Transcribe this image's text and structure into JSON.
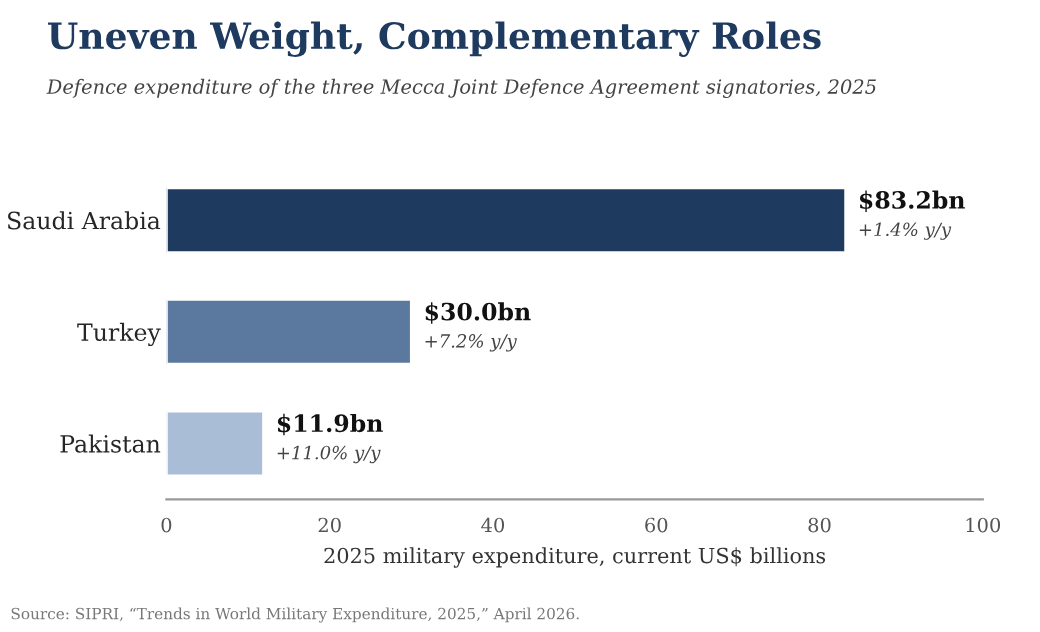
{
  "chart_data": {
    "type": "bar",
    "orientation": "horizontal",
    "title": "Uneven Weight, Complementary Roles",
    "subtitle": "Defence expenditure of the three Mecca Joint Defence Agreement signatories, 2025",
    "xlabel": "2025 military expenditure, current US$ billions",
    "categories": [
      "Saudi Arabia",
      "Turkey",
      "Pakistan"
    ],
    "values": [
      83.2,
      30.0,
      11.9
    ],
    "colors": [
      "#1e3a5f",
      "#5b799e",
      "#a9bed6"
    ],
    "value_labels": [
      "$83.2bn",
      "$30.0bn",
      "$11.9bn"
    ],
    "annotations": [
      {
        "text": "+1.4% y/y",
        "x": 83.2,
        "y": "Saudi Arabia"
      },
      {
        "text": "+7.2% y/y",
        "x": 30.0,
        "y": "Turkey"
      },
      {
        "text": "+11.0% y/y",
        "x": 11.9,
        "y": "Pakistan"
      },
      "Source: SIPRI, “Trends in World Military Expenditure, 2025,” April 2026."
    ],
    "xlim": [
      0,
      100
    ],
    "xticks": [
      0,
      20,
      40,
      60,
      80,
      100
    ],
    "grid": false,
    "legend": false
  }
}
